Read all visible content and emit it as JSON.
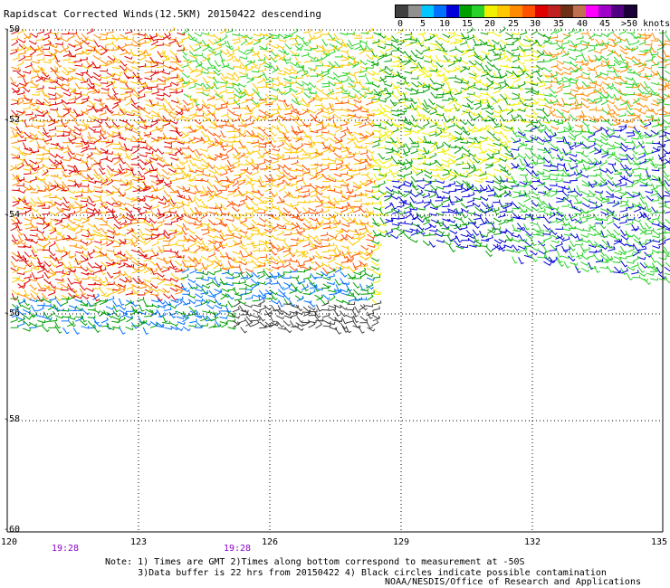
{
  "title": "Rapidscat Corrected Winds(12.5KM) 20150422 descending",
  "legend": {
    "colors": [
      "#404040",
      "#909090",
      "#00c8ff",
      "#0070ff",
      "#0000d8",
      "#00a000",
      "#28d228",
      "#f0f000",
      "#ffc800",
      "#ff8c00",
      "#ff5000",
      "#e00000",
      "#c02020",
      "#6e3014",
      "#c07050",
      "#ff00ff",
      "#a000c8",
      "#500080",
      "#1a0036"
    ],
    "labels": [
      "0",
      "5",
      "10",
      "15",
      "20",
      "25",
      "30",
      "35",
      "40",
      "45"
    ],
    "unit": ">50 knots"
  },
  "map": {
    "lon_labels": [
      "120",
      "123",
      "126",
      "129",
      "132",
      "135"
    ],
    "lat_labels": [
      "-50",
      "-52",
      "-54",
      "-56",
      "-58",
      "-60"
    ],
    "lon_range": [
      120,
      135
    ],
    "lat_range": [
      -60,
      -50
    ],
    "time_labels": [
      "19:28",
      "19:28"
    ],
    "grid": "dotted"
  },
  "notes": "Note: 1) Times are GMT 2)Times along bottom correspond to measurement at -50S\n      3)Data buffer is 22 hrs from 20150422 4) Black circles indicate possible contamination",
  "credit": "NOAA/NESDIS/Office of Research and Applications"
}
